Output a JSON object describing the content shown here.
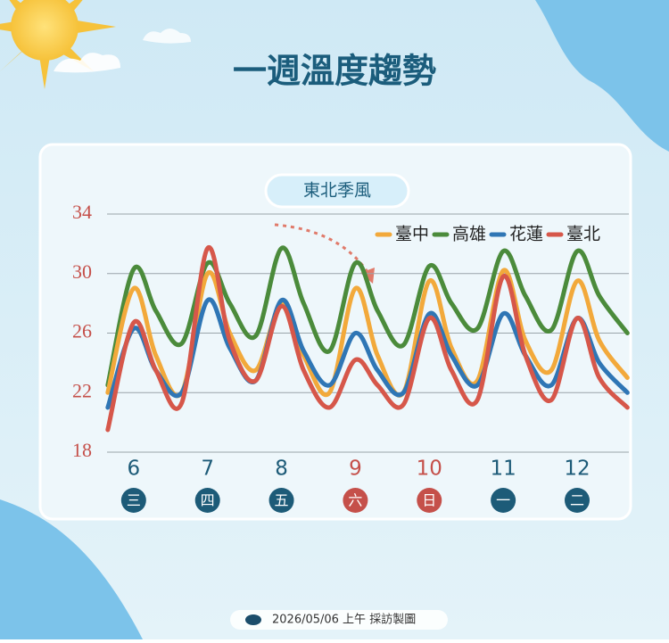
{
  "chart_data": {
    "type": "line",
    "title": "一週溫度趨勢",
    "subtitle": "東北季風",
    "footer": "2026/05/06 上午 採訪製圖",
    "x": [
      5.65,
      6.0,
      6.3,
      6.65,
      7.0,
      7.3,
      7.65,
      8.0,
      8.3,
      8.65,
      9.0,
      9.3,
      9.65,
      10.0,
      10.3,
      10.65,
      11.0,
      11.3,
      11.65,
      12.0,
      12.3,
      12.68
    ],
    "xlim": [
      5.64,
      12.7
    ],
    "xticks": [
      6,
      7,
      8,
      9,
      10,
      11,
      12
    ],
    "weekdays": [
      "三",
      "四",
      "五",
      "六",
      "日",
      "一",
      "二"
    ],
    "weekday_colors": [
      "#1d5b78",
      "#1d5b78",
      "#1d5b78",
      "#c5504a",
      "#c5504a",
      "#1d5b78",
      "#1d5b78"
    ],
    "ylim": [
      18,
      34
    ],
    "yticks": [
      18,
      22,
      26,
      30,
      34
    ],
    "grid": true,
    "legend": "top-right",
    "series": [
      {
        "name": "臺中",
        "color": "#f2a93b",
        "values": [
          22,
          29,
          24.5,
          22,
          30,
          26,
          23.5,
          28,
          24.5,
          22,
          29,
          24.5,
          22,
          29.5,
          25,
          22.8,
          30.2,
          25.5,
          23.5,
          29.5,
          25.5,
          23
        ]
      },
      {
        "name": "高雄",
        "color": "#4b8b3b",
        "values": [
          22.5,
          30.3,
          27.5,
          25.3,
          30.7,
          28,
          25.8,
          31.7,
          28,
          24.8,
          30.7,
          27.5,
          25.2,
          30.5,
          28,
          26.3,
          31.5,
          28.5,
          26.2,
          31.5,
          28.5,
          26
        ]
      },
      {
        "name": "花蓮",
        "color": "#2f76b5",
        "values": [
          21,
          26.3,
          23.5,
          22,
          28.2,
          25,
          22.8,
          28.2,
          24.8,
          22.5,
          26,
          23.5,
          22,
          27.3,
          24.5,
          22.5,
          27.3,
          24.5,
          22.5,
          27,
          24,
          22
        ]
      },
      {
        "name": "臺北",
        "color": "#d6574a",
        "values": [
          19.5,
          26.7,
          23.5,
          21.3,
          31.7,
          25.5,
          22.8,
          27.8,
          23.5,
          21,
          24.2,
          22.5,
          21.2,
          27,
          23.5,
          21.5,
          29.8,
          24.5,
          21.5,
          27,
          23,
          21
        ]
      }
    ]
  }
}
